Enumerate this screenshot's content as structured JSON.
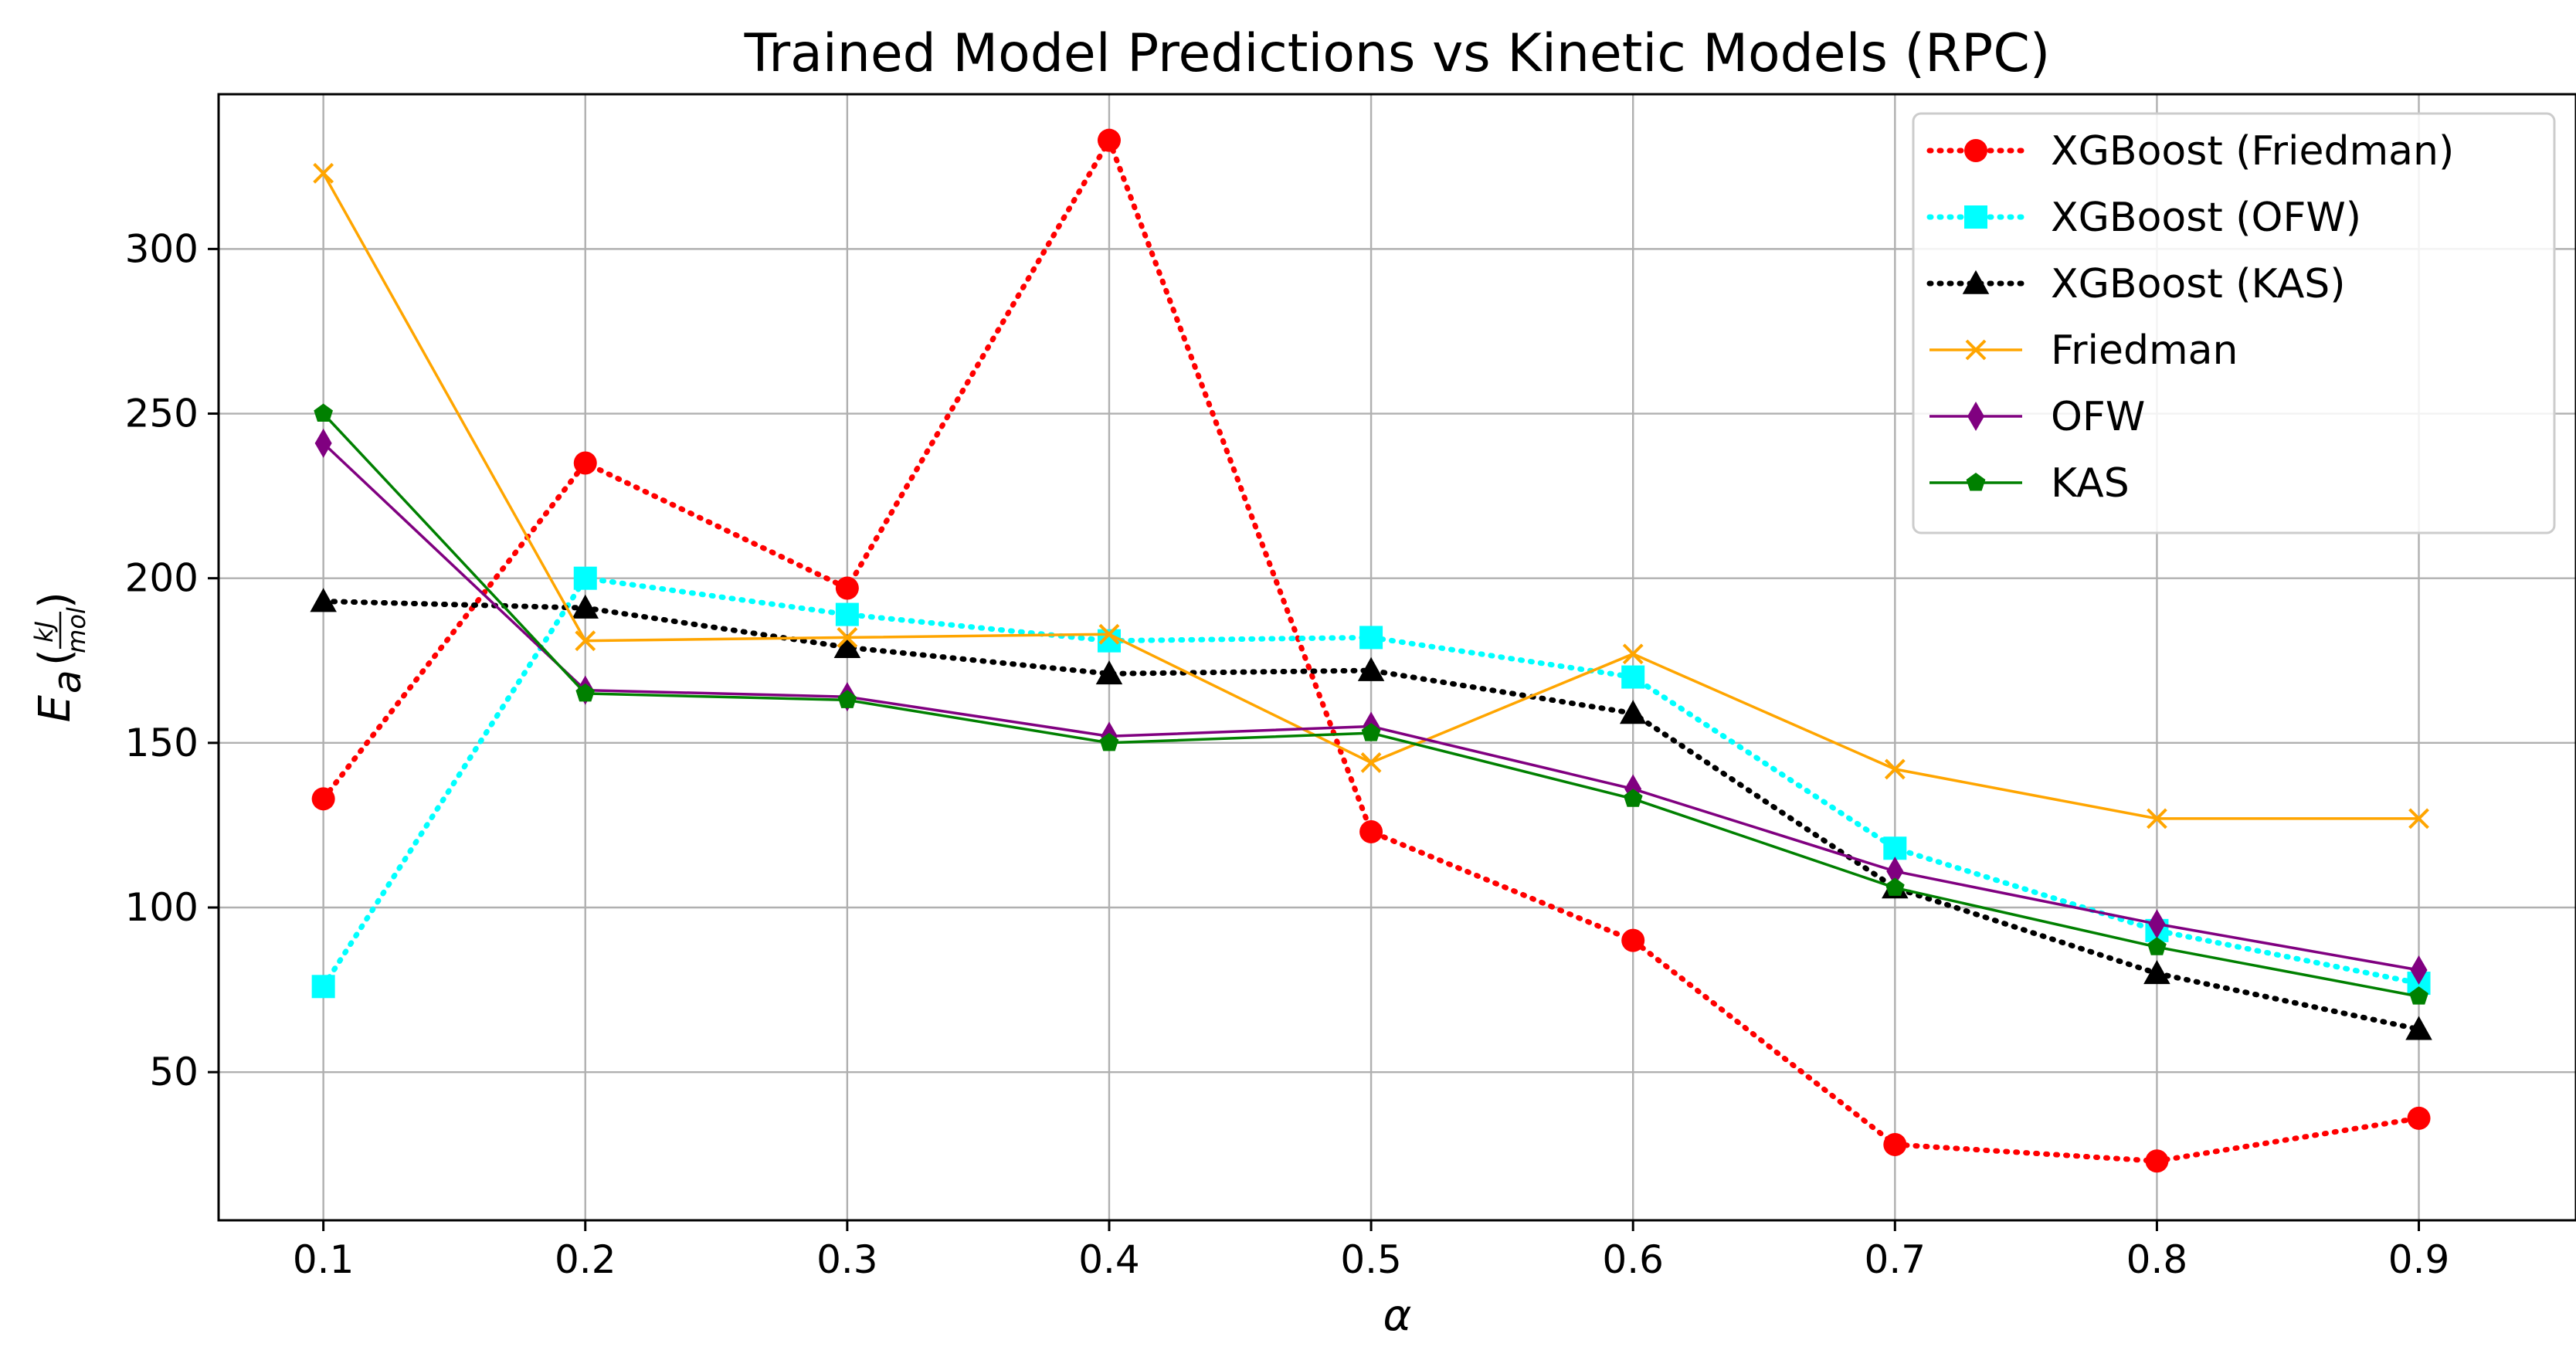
{
  "chart_data": {
    "type": "line",
    "title": "Trained Model Predictions vs Kinetic Models (RPC)",
    "xlabel": "α",
    "ylabel": {
      "symbol": "E",
      "subscript": "a",
      "fraction_numerator": "kJ",
      "fraction_denominator": "mol"
    },
    "x": [
      0.1,
      0.2,
      0.3,
      0.4,
      0.5,
      0.6,
      0.7,
      0.8,
      0.9
    ],
    "x_tick_labels": [
      "0.1",
      "0.2",
      "0.3",
      "0.4",
      "0.5",
      "0.6",
      "0.7",
      "0.8",
      "0.9"
    ],
    "xlim": [
      0.06,
      0.96
    ],
    "y_ticks": [
      50,
      100,
      150,
      200,
      250,
      300
    ],
    "y_tick_labels": [
      "50",
      "100",
      "150",
      "200",
      "250",
      "300"
    ],
    "ylim": [
      5,
      347
    ],
    "grid": true,
    "legend_position": "top-right",
    "series": [
      {
        "name": "XGBoost (Friedman)",
        "color": "#ff0000",
        "line_style": "dotted",
        "marker": "circle",
        "values": [
          133,
          235,
          197,
          333,
          123,
          90,
          28,
          23,
          36
        ]
      },
      {
        "name": "XGBoost (OFW)",
        "color": "#00ffff",
        "line_style": "dotted",
        "marker": "square",
        "values": [
          76,
          200,
          189,
          181,
          182,
          170,
          118,
          93,
          77
        ]
      },
      {
        "name": "XGBoost (KAS)",
        "color": "#000000",
        "line_style": "dotted",
        "marker": "triangle",
        "values": [
          193,
          191,
          179,
          171,
          172,
          159,
          106,
          80,
          63
        ]
      },
      {
        "name": "Friedman",
        "color": "#ffa500",
        "line_style": "solid",
        "marker": "x",
        "values": [
          323,
          181,
          182,
          183,
          144,
          177,
          142,
          127,
          127
        ]
      },
      {
        "name": "OFW",
        "color": "#800080",
        "line_style": "solid",
        "marker": "diamond",
        "values": [
          241,
          166,
          164,
          152,
          155,
          136,
          111,
          95,
          81
        ]
      },
      {
        "name": "KAS",
        "color": "#008000",
        "line_style": "solid",
        "marker": "pentagon",
        "values": [
          250,
          165,
          163,
          150,
          153,
          133,
          106,
          88,
          73
        ]
      }
    ]
  }
}
